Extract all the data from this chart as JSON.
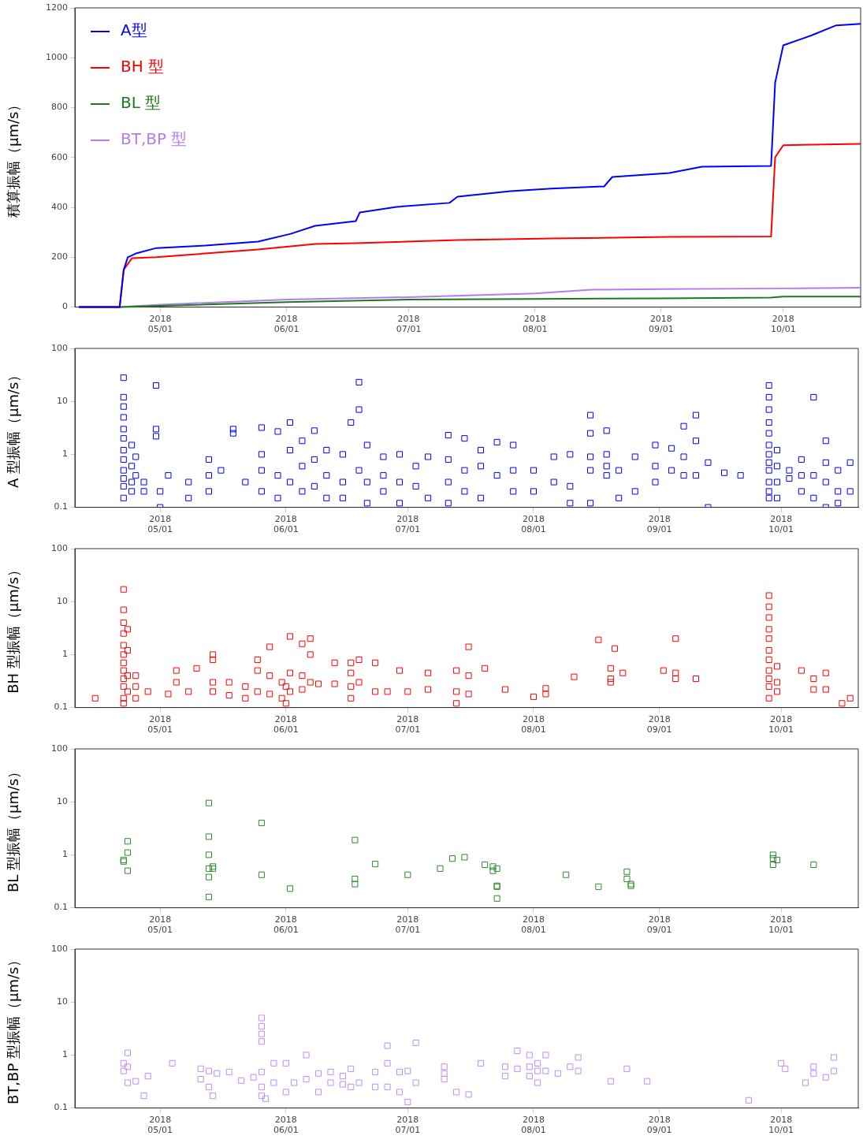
{
  "chart_data": [
    {
      "type": "line",
      "ylabel": "積算振幅（μm/s）",
      "legend": "top left",
      "grid": false,
      "marker": "none",
      "xlim": [
        "2018-04-10",
        "2018-10-20"
      ],
      "xticks": [
        {
          "value": "2018-05-01",
          "label": "2018\n05/01"
        },
        {
          "value": "2018-06-01",
          "label": "2018\n06/01"
        },
        {
          "value": "2018-07-01",
          "label": "2018\n07/01"
        },
        {
          "value": "2018-08-01",
          "label": "2018\n08/01"
        },
        {
          "value": "2018-09-01",
          "label": "2018\n09/01"
        },
        {
          "value": "2018-10-01",
          "label": "2018\n10/01"
        }
      ],
      "ylim": [
        0,
        1200
      ],
      "yticks": [
        0,
        200,
        400,
        600,
        800,
        1000,
        1200
      ],
      "series": [
        {
          "name": "A型",
          "color": "#0000ff",
          "x": [
            "2018-04-11",
            "2018-04-21",
            "2018-04-22",
            "2018-04-23",
            "2018-04-25",
            "2018-04-30",
            "2018-05-12",
            "2018-05-25",
            "2018-06-02",
            "2018-06-08",
            "2018-06-18",
            "2018-06-19",
            "2018-06-28",
            "2018-07-11",
            "2018-07-13",
            "2018-07-26",
            "2018-08-05",
            "2018-08-18",
            "2018-08-20",
            "2018-09-03",
            "2018-09-11",
            "2018-09-28",
            "2018-09-29",
            "2018-10-01",
            "2018-10-08",
            "2018-10-14",
            "2018-10-20"
          ],
          "values": [
            0,
            0,
            150,
            200,
            215,
            237,
            247,
            263,
            294,
            326,
            345,
            380,
            402,
            418,
            443,
            465,
            475,
            484,
            522,
            538,
            563,
            566,
            900,
            1050,
            1090,
            1130,
            1136
          ]
        },
        {
          "name": "BH 型",
          "color": "#ff0000",
          "x": [
            "2018-04-11",
            "2018-04-21",
            "2018-04-22",
            "2018-04-24",
            "2018-04-30",
            "2018-05-12",
            "2018-05-25",
            "2018-06-08",
            "2018-06-18",
            "2018-07-13",
            "2018-08-05",
            "2018-09-03",
            "2018-09-28",
            "2018-09-29",
            "2018-10-01",
            "2018-10-20"
          ],
          "values": [
            0,
            0,
            150,
            196,
            200,
            215,
            231,
            253,
            256,
            269,
            275,
            282,
            283,
            601,
            649,
            655
          ]
        },
        {
          "name": "BL 型",
          "color": "#1e7a1e",
          "x": [
            "2018-04-11",
            "2018-04-21",
            "2018-05-01",
            "2018-06-01",
            "2018-07-01",
            "2018-08-01",
            "2018-09-01",
            "2018-09-28",
            "2018-10-01",
            "2018-10-20"
          ],
          "values": [
            0,
            0,
            5,
            20,
            30,
            33,
            35,
            38,
            42,
            42
          ]
        },
        {
          "name": "BT,BP 型",
          "color": "#b57cf0",
          "x": [
            "2018-04-11",
            "2018-04-21",
            "2018-05-01",
            "2018-06-01",
            "2018-07-01",
            "2018-08-01",
            "2018-08-15",
            "2018-09-01",
            "2018-10-01",
            "2018-10-20"
          ],
          "values": [
            0,
            0,
            10,
            30,
            40,
            55,
            70,
            72,
            75,
            78
          ]
        }
      ]
    },
    {
      "type": "scatter",
      "ylabel": "A 型振幅（μm/s）",
      "grid": false,
      "marker": "square",
      "log": "y",
      "xlim": [
        "2018-04-10",
        "2018-10-20"
      ],
      "xticks": [
        {
          "value": "2018-05-01",
          "label": "2018\n05/01"
        },
        {
          "value": "2018-06-01",
          "label": "2018\n06/01"
        },
        {
          "value": "2018-07-01",
          "label": "2018\n07/01"
        },
        {
          "value": "2018-08-01",
          "label": "2018\n08/01"
        },
        {
          "value": "2018-09-01",
          "label": "2018\n09/01"
        },
        {
          "value": "2018-10-01",
          "label": "2018\n10/01"
        }
      ],
      "ylim": [
        0.1,
        100
      ],
      "yticks": [
        0.1,
        1,
        10,
        100
      ],
      "series": [
        {
          "color": "#0000ff",
          "x": [
            "2018-04-22",
            "2018-04-22",
            "2018-04-22",
            "2018-04-22",
            "2018-04-22",
            "2018-04-22",
            "2018-04-22",
            "2018-04-22",
            "2018-04-22",
            "2018-04-22",
            "2018-04-22",
            "2018-04-22",
            "2018-04-24",
            "2018-04-24",
            "2018-04-24",
            "2018-04-24",
            "2018-04-25",
            "2018-04-25",
            "2018-04-27",
            "2018-04-27",
            "2018-04-30",
            "2018-04-30",
            "2018-04-30",
            "2018-05-01",
            "2018-05-01",
            "2018-05-03",
            "2018-05-08",
            "2018-05-08",
            "2018-05-13",
            "2018-05-13",
            "2018-05-13",
            "2018-05-16",
            "2018-05-19",
            "2018-05-19",
            "2018-05-22",
            "2018-05-26",
            "2018-05-26",
            "2018-05-26",
            "2018-05-26",
            "2018-05-30",
            "2018-05-30",
            "2018-05-30",
            "2018-06-02",
            "2018-06-02",
            "2018-06-02",
            "2018-06-05",
            "2018-06-05",
            "2018-06-05",
            "2018-06-08",
            "2018-06-08",
            "2018-06-08",
            "2018-06-11",
            "2018-06-11",
            "2018-06-11",
            "2018-06-15",
            "2018-06-15",
            "2018-06-15",
            "2018-06-17",
            "2018-06-19",
            "2018-06-19",
            "2018-06-19",
            "2018-06-21",
            "2018-06-21",
            "2018-06-21",
            "2018-06-25",
            "2018-06-25",
            "2018-06-25",
            "2018-06-29",
            "2018-06-29",
            "2018-06-29",
            "2018-07-03",
            "2018-07-03",
            "2018-07-06",
            "2018-07-06",
            "2018-07-11",
            "2018-07-11",
            "2018-07-11",
            "2018-07-11",
            "2018-07-15",
            "2018-07-15",
            "2018-07-15",
            "2018-07-19",
            "2018-07-19",
            "2018-07-19",
            "2018-07-23",
            "2018-07-23",
            "2018-07-27",
            "2018-07-27",
            "2018-07-27",
            "2018-08-01",
            "2018-08-01",
            "2018-08-06",
            "2018-08-06",
            "2018-08-10",
            "2018-08-10",
            "2018-08-10",
            "2018-08-15",
            "2018-08-15",
            "2018-08-15",
            "2018-08-15",
            "2018-08-15",
            "2018-08-19",
            "2018-08-19",
            "2018-08-19",
            "2018-08-19",
            "2018-08-22",
            "2018-08-22",
            "2018-08-26",
            "2018-08-26",
            "2018-08-31",
            "2018-08-31",
            "2018-08-31",
            "2018-09-04",
            "2018-09-04",
            "2018-09-07",
            "2018-09-07",
            "2018-09-07",
            "2018-09-10",
            "2018-09-10",
            "2018-09-10",
            "2018-09-13",
            "2018-09-13",
            "2018-09-17",
            "2018-09-21",
            "2018-09-28",
            "2018-09-28",
            "2018-09-28",
            "2018-09-28",
            "2018-09-28",
            "2018-09-28",
            "2018-09-28",
            "2018-09-28",
            "2018-09-28",
            "2018-09-28",
            "2018-09-28",
            "2018-09-28",
            "2018-09-30",
            "2018-09-30",
            "2018-09-30",
            "2018-09-30",
            "2018-10-03",
            "2018-10-03",
            "2018-10-06",
            "2018-10-06",
            "2018-10-06",
            "2018-10-09",
            "2018-10-09",
            "2018-10-09",
            "2018-10-12",
            "2018-10-12",
            "2018-10-12",
            "2018-10-12",
            "2018-10-15",
            "2018-10-15",
            "2018-10-15",
            "2018-10-18",
            "2018-10-18"
          ],
          "values": [
            28,
            12,
            8,
            5,
            3,
            2,
            1.2,
            0.8,
            0.5,
            0.35,
            0.25,
            0.15,
            1.5,
            0.6,
            0.3,
            0.2,
            0.9,
            0.4,
            0.3,
            0.2,
            20,
            3,
            2.2,
            0.1,
            0.2,
            0.4,
            0.3,
            0.15,
            0.8,
            0.4,
            0.2,
            0.5,
            2.5,
            3,
            0.3,
            3.2,
            1,
            0.5,
            0.2,
            2.7,
            0.4,
            0.15,
            4,
            1.2,
            0.3,
            1.8,
            0.6,
            0.2,
            2.8,
            0.8,
            0.25,
            1.2,
            0.4,
            0.15,
            1,
            0.3,
            0.15,
            4,
            23,
            7,
            0.5,
            1.5,
            0.3,
            0.12,
            0.9,
            0.4,
            0.2,
            1,
            0.3,
            0.12,
            0.6,
            0.25,
            0.9,
            0.15,
            2.3,
            0.8,
            0.3,
            0.12,
            2,
            0.5,
            0.2,
            1.2,
            0.6,
            0.15,
            1.7,
            0.4,
            1.5,
            0.5,
            0.2,
            0.5,
            0.2,
            0.9,
            0.3,
            1,
            0.25,
            0.12,
            5.5,
            2.5,
            0.9,
            0.5,
            0.12,
            2.8,
            1,
            0.6,
            0.4,
            0.15,
            0.5,
            0.2,
            0.9,
            1.5,
            0.6,
            0.3,
            1.3,
            0.5,
            3.4,
            0.9,
            0.4,
            5.5,
            1.8,
            0.4,
            0.7,
            0.1,
            0.45,
            0.4,
            20,
            12,
            7,
            4,
            2.5,
            1.5,
            1,
            0.7,
            0.5,
            0.3,
            0.2,
            0.15,
            1.2,
            0.6,
            0.3,
            0.15,
            0.5,
            0.35,
            0.8,
            0.4,
            0.2,
            12,
            0.4,
            0.15,
            1.8,
            0.7,
            0.3,
            0.1,
            0.5,
            0.2,
            0.12,
            0.7,
            0.2
          ]
        }
      ]
    },
    {
      "type": "scatter",
      "ylabel": "BH 型振幅（μm/s）",
      "grid": false,
      "marker": "square",
      "log": "y",
      "xlim": [
        "2018-04-10",
        "2018-10-20"
      ],
      "xticks": [
        {
          "value": "2018-05-01",
          "label": "2018\n05/01"
        },
        {
          "value": "2018-06-01",
          "label": "2018\n06/01"
        },
        {
          "value": "2018-07-01",
          "label": "2018\n07/01"
        },
        {
          "value": "2018-08-01",
          "label": "2018\n08/01"
        },
        {
          "value": "2018-09-01",
          "label": "2018\n09/01"
        },
        {
          "value": "2018-10-01",
          "label": "2018\n10/01"
        }
      ],
      "ylim": [
        0.1,
        100
      ],
      "yticks": [
        0.1,
        1,
        10,
        100
      ],
      "series": [
        {
          "color": "#ff0000",
          "x": [
            "2018-04-15",
            "2018-04-22",
            "2018-04-22",
            "2018-04-22",
            "2018-04-22",
            "2018-04-22",
            "2018-04-22",
            "2018-04-22",
            "2018-04-22",
            "2018-04-22",
            "2018-04-22",
            "2018-04-22",
            "2018-04-22",
            "2018-04-23",
            "2018-04-23",
            "2018-04-23",
            "2018-04-23",
            "2018-04-25",
            "2018-04-25",
            "2018-04-25",
            "2018-04-28",
            "2018-05-03",
            "2018-05-05",
            "2018-05-05",
            "2018-05-08",
            "2018-05-10",
            "2018-05-14",
            "2018-05-14",
            "2018-05-14",
            "2018-05-14",
            "2018-05-18",
            "2018-05-18",
            "2018-05-22",
            "2018-05-22",
            "2018-05-25",
            "2018-05-25",
            "2018-05-25",
            "2018-05-28",
            "2018-05-28",
            "2018-05-28",
            "2018-05-31",
            "2018-05-31",
            "2018-06-01",
            "2018-06-01",
            "2018-06-02",
            "2018-06-02",
            "2018-06-02",
            "2018-06-05",
            "2018-06-05",
            "2018-06-05",
            "2018-06-07",
            "2018-06-07",
            "2018-06-07",
            "2018-06-09",
            "2018-06-13",
            "2018-06-13",
            "2018-06-17",
            "2018-06-17",
            "2018-06-17",
            "2018-06-17",
            "2018-06-19",
            "2018-06-19",
            "2018-06-23",
            "2018-06-23",
            "2018-06-26",
            "2018-06-29",
            "2018-07-01",
            "2018-07-06",
            "2018-07-06",
            "2018-07-13",
            "2018-07-13",
            "2018-07-13",
            "2018-07-16",
            "2018-07-16",
            "2018-07-16",
            "2018-07-20",
            "2018-07-25",
            "2018-08-01",
            "2018-08-04",
            "2018-08-04",
            "2018-08-11",
            "2018-08-17",
            "2018-08-20",
            "2018-08-20",
            "2018-08-20",
            "2018-08-21",
            "2018-08-23",
            "2018-09-02",
            "2018-09-05",
            "2018-09-05",
            "2018-09-05",
            "2018-09-10",
            "2018-09-28",
            "2018-09-28",
            "2018-09-28",
            "2018-09-28",
            "2018-09-28",
            "2018-09-28",
            "2018-09-28",
            "2018-09-28",
            "2018-09-28",
            "2018-09-28",
            "2018-09-28",
            "2018-09-30",
            "2018-09-30",
            "2018-09-30",
            "2018-10-06",
            "2018-10-09",
            "2018-10-09",
            "2018-10-12",
            "2018-10-12",
            "2018-10-16",
            "2018-10-18"
          ],
          "values": [
            0.15,
            17,
            7,
            4,
            2.5,
            1.5,
            1,
            0.7,
            0.5,
            0.35,
            0.25,
            0.15,
            0.12,
            3,
            1.2,
            0.4,
            0.2,
            0.4,
            0.25,
            0.15,
            0.2,
            0.18,
            0.5,
            0.3,
            0.2,
            0.55,
            1,
            0.8,
            0.3,
            0.2,
            0.3,
            0.17,
            0.25,
            0.15,
            0.8,
            0.5,
            0.2,
            1.4,
            0.4,
            0.18,
            0.3,
            0.15,
            0.25,
            0.12,
            2.2,
            0.45,
            0.2,
            1.6,
            0.4,
            0.22,
            2,
            1,
            0.3,
            0.28,
            0.7,
            0.28,
            0.7,
            0.45,
            0.25,
            0.15,
            0.8,
            0.3,
            0.7,
            0.2,
            0.2,
            0.5,
            0.2,
            0.45,
            0.22,
            0.5,
            0.2,
            0.12,
            1.4,
            0.4,
            0.18,
            0.55,
            0.22,
            0.16,
            0.23,
            0.18,
            0.38,
            1.9,
            0.55,
            0.35,
            0.3,
            1.3,
            0.45,
            0.5,
            2,
            0.45,
            0.35,
            0.35,
            13,
            8,
            5,
            3,
            2,
            1.2,
            0.8,
            0.5,
            0.35,
            0.25,
            0.15,
            0.6,
            0.3,
            0.2,
            0.5,
            0.35,
            0.22,
            0.45,
            0.22,
            0.12,
            0.15
          ]
        }
      ]
    },
    {
      "type": "scatter",
      "ylabel": "BL 型振幅（μm/s）",
      "grid": false,
      "marker": "square",
      "log": "y",
      "xlim": [
        "2018-04-10",
        "2018-10-20"
      ],
      "xticks": [
        {
          "value": "2018-05-01",
          "label": "2018\n05/01"
        },
        {
          "value": "2018-06-01",
          "label": "2018\n06/01"
        },
        {
          "value": "2018-07-01",
          "label": "2018\n07/01"
        },
        {
          "value": "2018-08-01",
          "label": "2018\n08/01"
        },
        {
          "value": "2018-09-01",
          "label": "2018\n09/01"
        },
        {
          "value": "2018-10-01",
          "label": "2018\n10/01"
        }
      ],
      "ylim": [
        0.1,
        100
      ],
      "yticks": [
        0.1,
        1,
        10,
        100
      ],
      "series": [
        {
          "color": "#2e8b2e",
          "x": [
            "2018-04-22",
            "2018-04-22",
            "2018-04-23",
            "2018-04-23",
            "2018-04-23",
            "2018-05-13",
            "2018-05-13",
            "2018-05-13",
            "2018-05-13",
            "2018-05-13",
            "2018-05-13",
            "2018-05-14",
            "2018-05-14",
            "2018-05-26",
            "2018-05-26",
            "2018-06-02",
            "2018-06-18",
            "2018-06-18",
            "2018-06-18",
            "2018-06-23",
            "2018-07-01",
            "2018-07-09",
            "2018-07-12",
            "2018-07-15",
            "2018-07-20",
            "2018-07-22",
            "2018-07-22",
            "2018-07-23",
            "2018-07-23",
            "2018-07-23",
            "2018-07-23",
            "2018-08-09",
            "2018-08-17",
            "2018-08-24",
            "2018-08-24",
            "2018-08-25",
            "2018-08-25",
            "2018-09-29",
            "2018-09-29",
            "2018-09-29",
            "2018-09-30",
            "2018-10-09"
          ],
          "values": [
            0.8,
            0.75,
            1.8,
            1.1,
            0.5,
            9.5,
            2.2,
            1,
            0.55,
            0.38,
            0.16,
            0.55,
            0.6,
            4,
            0.42,
            0.23,
            1.9,
            0.35,
            0.28,
            0.67,
            0.42,
            0.55,
            0.85,
            0.9,
            0.65,
            0.6,
            0.5,
            0.55,
            0.26,
            0.25,
            0.15,
            0.42,
            0.25,
            0.48,
            0.35,
            0.28,
            0.26,
            1,
            0.85,
            0.65,
            0.8,
            0.65
          ]
        }
      ]
    },
    {
      "type": "scatter",
      "ylabel": "BT,BP 型振幅（μm/s）",
      "grid": false,
      "marker": "square",
      "log": "y",
      "xlim": [
        "2018-04-10",
        "2018-10-20"
      ],
      "xticks": [
        {
          "value": "2018-05-01",
          "label": "2018\n05/01"
        },
        {
          "value": "2018-06-01",
          "label": "2018\n06/01"
        },
        {
          "value": "2018-07-01",
          "label": "2018\n07/01"
        },
        {
          "value": "2018-08-01",
          "label": "2018\n08/01"
        },
        {
          "value": "2018-09-01",
          "label": "2018\n09/01"
        },
        {
          "value": "2018-10-01",
          "label": "2018\n10/01"
        }
      ],
      "ylim": [
        0.1,
        100
      ],
      "yticks": [
        0.1,
        1,
        10,
        100
      ],
      "series": [
        {
          "color": "#c08cf5",
          "x": [
            "2018-04-22",
            "2018-04-22",
            "2018-04-23",
            "2018-04-23",
            "2018-04-23",
            "2018-04-25",
            "2018-04-27",
            "2018-04-28",
            "2018-05-04",
            "2018-05-11",
            "2018-05-11",
            "2018-05-13",
            "2018-05-13",
            "2018-05-14",
            "2018-05-15",
            "2018-05-18",
            "2018-05-21",
            "2018-05-24",
            "2018-05-26",
            "2018-05-26",
            "2018-05-26",
            "2018-05-26",
            "2018-05-26",
            "2018-05-26",
            "2018-05-26",
            "2018-05-27",
            "2018-05-29",
            "2018-05-29",
            "2018-06-01",
            "2018-06-01",
            "2018-06-03",
            "2018-06-06",
            "2018-06-06",
            "2018-06-09",
            "2018-06-09",
            "2018-06-12",
            "2018-06-12",
            "2018-06-15",
            "2018-06-15",
            "2018-06-17",
            "2018-06-17",
            "2018-06-19",
            "2018-06-23",
            "2018-06-23",
            "2018-06-26",
            "2018-06-26",
            "2018-06-26",
            "2018-06-29",
            "2018-06-29",
            "2018-07-01",
            "2018-07-01",
            "2018-07-03",
            "2018-07-03",
            "2018-07-10",
            "2018-07-10",
            "2018-07-10",
            "2018-07-13",
            "2018-07-16",
            "2018-07-19",
            "2018-07-25",
            "2018-07-25",
            "2018-07-28",
            "2018-07-28",
            "2018-07-31",
            "2018-07-31",
            "2018-07-31",
            "2018-08-02",
            "2018-08-02",
            "2018-08-02",
            "2018-08-04",
            "2018-08-04",
            "2018-08-07",
            "2018-08-10",
            "2018-08-12",
            "2018-08-12",
            "2018-08-20",
            "2018-08-24",
            "2018-08-29",
            "2018-09-23",
            "2018-10-01",
            "2018-10-02",
            "2018-10-07",
            "2018-10-09",
            "2018-10-09",
            "2018-10-12",
            "2018-10-14",
            "2018-10-14"
          ],
          "values": [
            0.7,
            0.5,
            1.1,
            0.6,
            0.3,
            0.32,
            0.17,
            0.4,
            0.7,
            0.55,
            0.35,
            0.5,
            0.25,
            0.17,
            0.45,
            0.48,
            0.33,
            0.38,
            5,
            3.5,
            2.5,
            1.8,
            0.48,
            0.25,
            0.17,
            0.15,
            0.7,
            0.3,
            0.7,
            0.2,
            0.3,
            1,
            0.35,
            0.45,
            0.2,
            0.48,
            0.3,
            0.4,
            0.28,
            0.55,
            0.25,
            0.3,
            0.48,
            0.25,
            1.5,
            0.7,
            0.25,
            0.48,
            0.2,
            0.5,
            0.13,
            1.7,
            0.3,
            0.6,
            0.45,
            0.35,
            0.2,
            0.18,
            0.7,
            0.6,
            0.4,
            1.2,
            0.55,
            1,
            0.6,
            0.4,
            0.7,
            0.5,
            0.3,
            1,
            0.5,
            0.45,
            0.6,
            0.9,
            0.5,
            0.32,
            0.55,
            0.32,
            0.14,
            0.7,
            0.55,
            0.3,
            0.6,
            0.45,
            0.38,
            0.9,
            0.5
          ]
        }
      ]
    }
  ]
}
